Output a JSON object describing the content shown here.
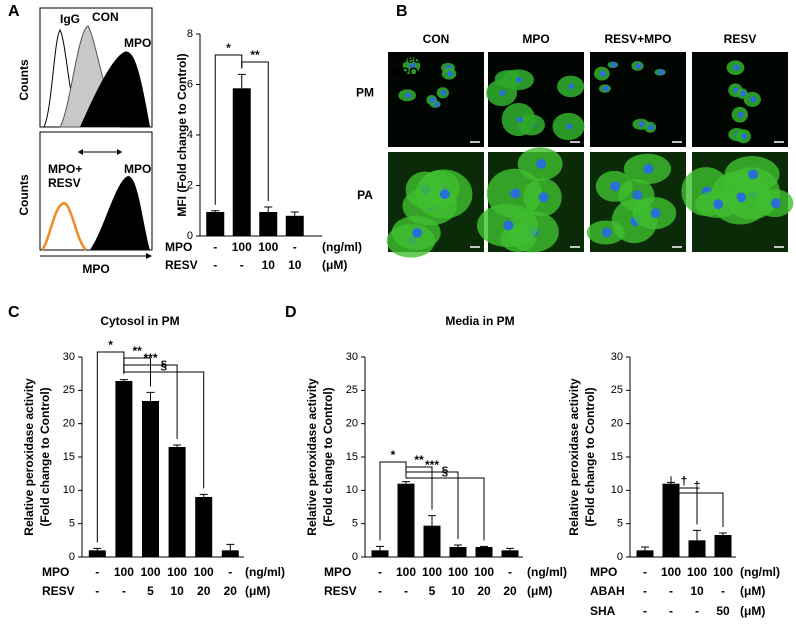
{
  "panel_labels": [
    "A",
    "B",
    "C",
    "D"
  ],
  "flow": {
    "y_label": "Counts",
    "x_label": "MPO",
    "top": {
      "labels": [
        "IgG",
        "CON",
        "MPO"
      ]
    },
    "bottom": {
      "labels": [
        "MPO+",
        "RESV",
        "MPO"
      ]
    }
  },
  "microscopy": {
    "columns": [
      "CON",
      "MPO",
      "RESV+MPO",
      "RESV"
    ],
    "rows": [
      "PM",
      "PA"
    ],
    "stain_labels": [
      "Hoechst",
      "MPO"
    ]
  },
  "chart_data": [
    {
      "type": "bar",
      "ylabel": [
        "MFI (Fold change to Control)"
      ],
      "values": [
        0.95,
        5.85,
        0.95,
        0.8
      ],
      "errors": [
        0.05,
        0.55,
        0.2,
        0.15
      ],
      "ylim": [
        0,
        8
      ],
      "yticks": [
        0,
        2,
        4,
        6,
        8
      ],
      "color": "#000000",
      "annotations": [
        "*",
        "**"
      ],
      "conditions": [
        {
          "name": "MPO",
          "values": [
            "-",
            "100",
            "100",
            "-"
          ],
          "unit": "(ng/ml)"
        },
        {
          "name": "RESV",
          "values": [
            "-",
            "-",
            "10",
            "10"
          ],
          "unit": "(μM)"
        }
      ]
    },
    {
      "type": "bar",
      "title": "Cytosol in PM",
      "ylabel": [
        "Relative peroxidase activity",
        "(Fold change to Control)"
      ],
      "values": [
        1,
        26.4,
        23.4,
        16.5,
        9,
        1
      ],
      "errors": [
        0.3,
        0.2,
        1.3,
        0.3,
        0.4,
        0.9
      ],
      "ylim": [
        0,
        30
      ],
      "yticks": [
        0,
        5,
        10,
        15,
        20,
        25,
        30
      ],
      "color": "#000000",
      "annotations": [
        "*",
        "**",
        "***",
        "§"
      ],
      "conditions": [
        {
          "name": "MPO",
          "values": [
            "-",
            "100",
            "100",
            "100",
            "100",
            "-"
          ],
          "unit": "(ng/ml)"
        },
        {
          "name": "RESV",
          "values": [
            "-",
            "-",
            "5",
            "10",
            "20",
            "20"
          ],
          "unit": "(μM)"
        }
      ]
    },
    {
      "type": "bar",
      "title": "Media in PM",
      "ylabel": [
        "Relative peroxidase activity",
        "(Fold change to Control)"
      ],
      "values": [
        1,
        11,
        4.7,
        1.5,
        1.5,
        1
      ],
      "errors": [
        0.6,
        0.3,
        1.5,
        0.3,
        0.1,
        0.3
      ],
      "ylim": [
        0,
        30
      ],
      "yticks": [
        0,
        5,
        10,
        15,
        20,
        25,
        30
      ],
      "color": "#000000",
      "annotations": [
        "*",
        "**",
        "***",
        "§"
      ],
      "conditions": [
        {
          "name": "MPO",
          "values": [
            "-",
            "100",
            "100",
            "100",
            "100",
            "-"
          ],
          "unit": "(ng/ml)"
        },
        {
          "name": "RESV",
          "values": [
            "-",
            "-",
            "5",
            "10",
            "20",
            "20"
          ],
          "unit": "(μM)"
        }
      ]
    },
    {
      "type": "bar",
      "ylabel": [
        "Relative peroxidase activity",
        "(Fold change to Control)"
      ],
      "values": [
        1,
        11,
        2.5,
        3.3
      ],
      "errors": [
        0.5,
        0.2,
        1.5,
        0.3
      ],
      "ylim": [
        0,
        30
      ],
      "yticks": [
        0,
        5,
        10,
        15,
        20,
        25,
        30
      ],
      "color": "#000000",
      "annotations": [
        "†",
        "‡"
      ],
      "conditions": [
        {
          "name": "MPO",
          "values": [
            "-",
            "100",
            "100",
            "100"
          ],
          "unit": "(ng/ml)"
        },
        {
          "name": "ABAH",
          "values": [
            "-",
            "-",
            "10",
            "-"
          ],
          "unit": "(μM)"
        },
        {
          "name": "SHA",
          "values": [
            "-",
            "-",
            "-",
            "50"
          ],
          "unit": "(μM)"
        }
      ]
    }
  ]
}
